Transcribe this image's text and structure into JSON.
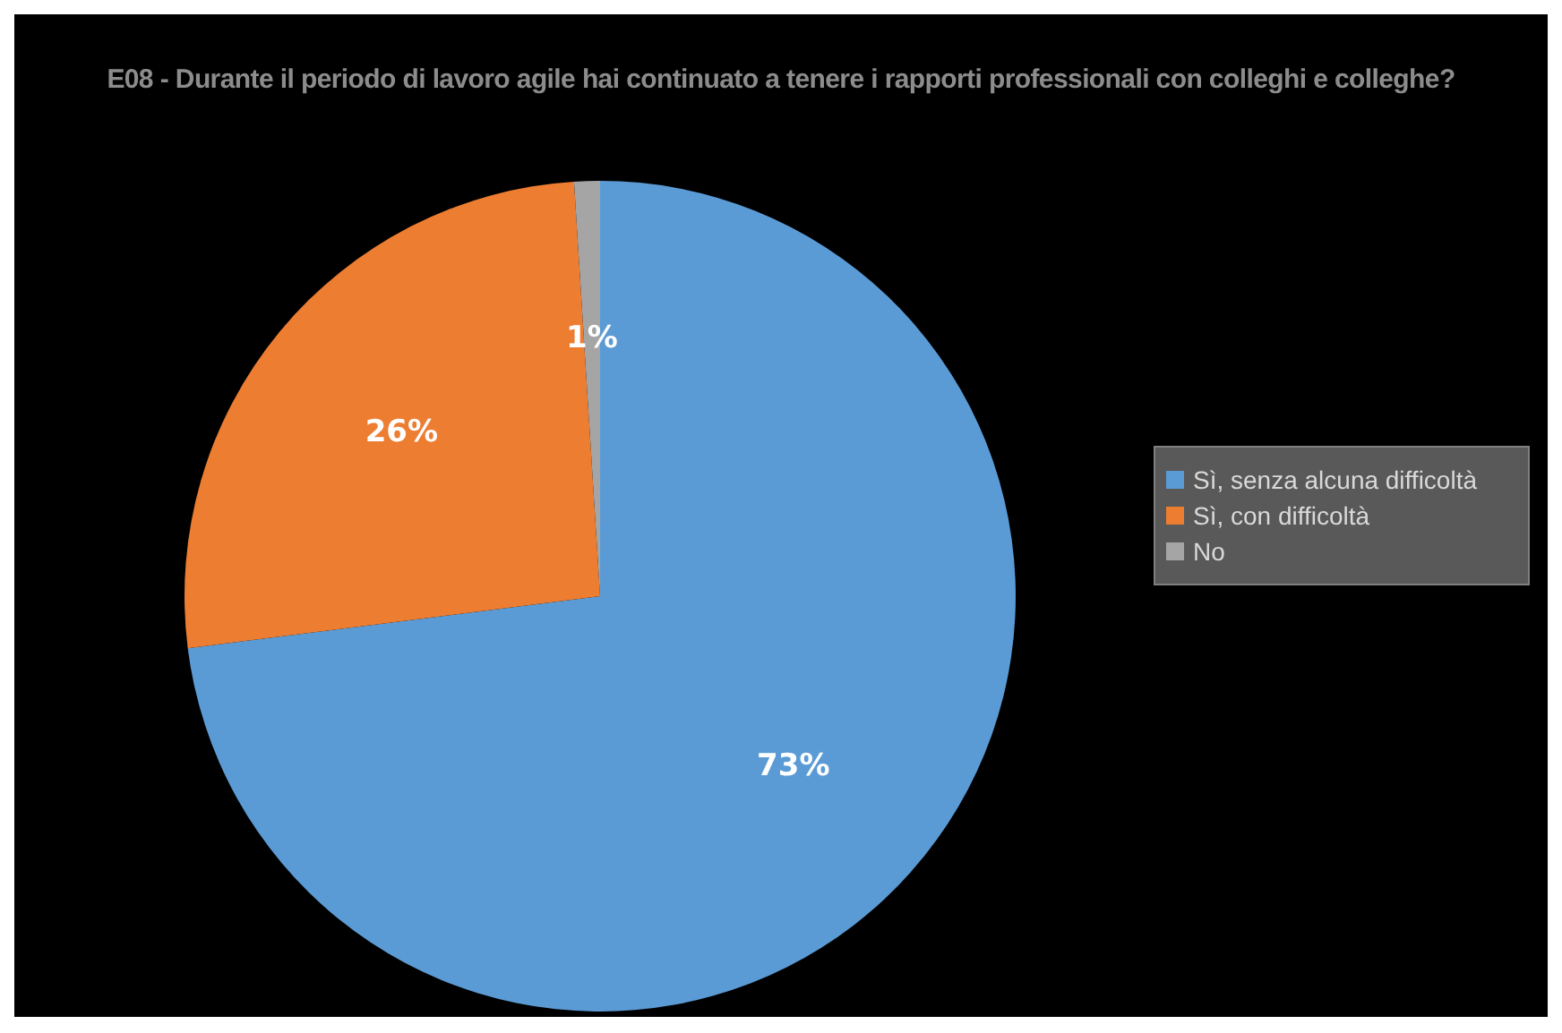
{
  "chart_data": {
    "type": "pie",
    "title": "E08 - Durante il periodo di lavoro agile hai continuato a tenere i rapporti professionali con colleghi e colleghe?",
    "categories": [
      "Sì, senza alcuna difficoltà",
      "Sì, con difficoltà",
      "No"
    ],
    "values": [
      73,
      26,
      1
    ],
    "colors": [
      "#5b9bd5",
      "#ed7d31",
      "#a5a5a5"
    ],
    "value_labels": [
      "73%",
      "26%",
      "1%"
    ],
    "legend": "right"
  }
}
